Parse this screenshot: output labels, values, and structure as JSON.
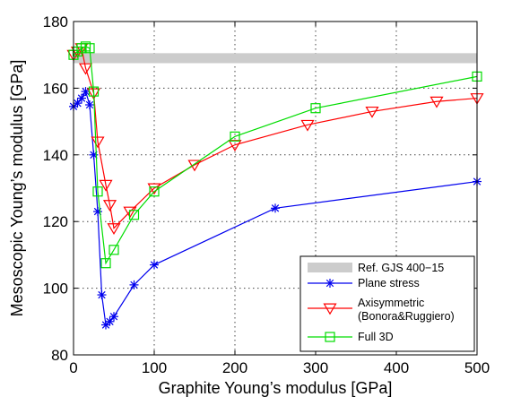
{
  "chart_data": {
    "type": "line",
    "xlabel": "Graphite Young’s modulus [GPa]",
    "ylabel": "Mesoscopic Young’s modulus [GPa]",
    "xlim": [
      0,
      500
    ],
    "ylim": [
      80,
      180
    ],
    "xticks": [
      0,
      100,
      200,
      300,
      400,
      500
    ],
    "yticks": [
      80,
      100,
      120,
      140,
      160,
      180
    ],
    "grid": true,
    "legend_position": "bottom-right",
    "reference_band": {
      "name": "Ref. GJS 400−15",
      "y_min": 167.5,
      "y_max": 170.5,
      "color": "#cccccc"
    },
    "series": [
      {
        "name": "Plane stress",
        "color": "#0000ee",
        "marker": "asterisk",
        "points": [
          [
            0,
            154.5
          ],
          [
            5,
            155.5
          ],
          [
            10,
            157
          ],
          [
            15,
            159
          ],
          [
            20,
            155
          ],
          [
            25,
            140
          ],
          [
            30,
            123
          ],
          [
            35,
            98
          ],
          [
            40,
            89
          ],
          [
            45,
            90
          ],
          [
            50,
            91.5
          ],
          [
            75,
            101
          ],
          [
            100,
            107
          ],
          [
            250,
            124
          ],
          [
            500,
            132
          ]
        ]
      },
      {
        "name": "Axisymmetric",
        "name_line2": "(Bonora&Ruggiero)",
        "color": "#ff0000",
        "marker": "triangle-down",
        "points": [
          [
            0,
            170
          ],
          [
            5,
            171
          ],
          [
            10,
            172
          ],
          [
            15,
            166
          ],
          [
            25,
            158.5
          ],
          [
            30,
            144
          ],
          [
            40,
            131
          ],
          [
            45,
            125
          ],
          [
            50,
            118
          ],
          [
            70,
            123
          ],
          [
            100,
            130
          ],
          [
            150,
            137
          ],
          [
            200,
            143
          ],
          [
            290,
            149
          ],
          [
            370,
            153
          ],
          [
            450,
            156
          ],
          [
            500,
            157
          ]
        ]
      },
      {
        "name": "Full 3D",
        "color": "#00dd00",
        "marker": "square",
        "points": [
          [
            0,
            170
          ],
          [
            5,
            171
          ],
          [
            10,
            172
          ],
          [
            15,
            172.5
          ],
          [
            20,
            172
          ],
          [
            25,
            159
          ],
          [
            30,
            129
          ],
          [
            40,
            107.5
          ],
          [
            50,
            111.5
          ],
          [
            75,
            122
          ],
          [
            100,
            129
          ],
          [
            200,
            145.5
          ],
          [
            300,
            154
          ],
          [
            500,
            163.5
          ]
        ]
      }
    ]
  }
}
